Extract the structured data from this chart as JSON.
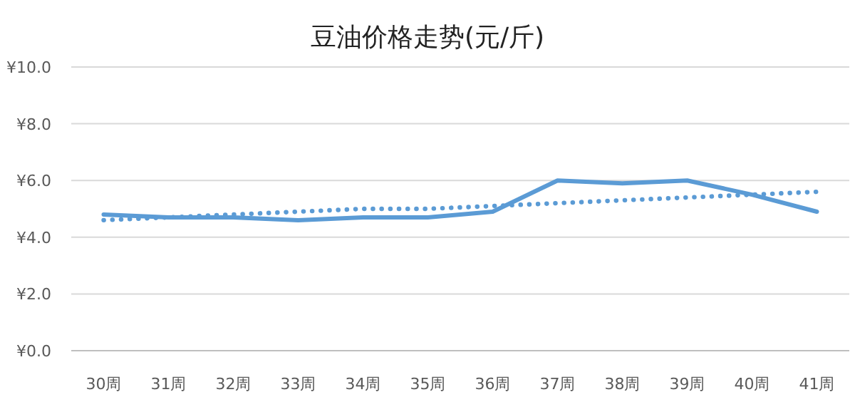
{
  "chart_data": {
    "type": "line",
    "title": "豆油价格走势(元/斤)",
    "categories": [
      "30周",
      "31周",
      "32周",
      "33周",
      "34周",
      "35周",
      "36周",
      "37周",
      "38周",
      "39周",
      "40周",
      "41周"
    ],
    "series": [
      {
        "color": "#5b9bd5",
        "line_style": "solid",
        "values": [
          4.8,
          4.7,
          4.7,
          4.6,
          4.7,
          4.7,
          4.9,
          6.0,
          5.9,
          6.0,
          5.5,
          4.9
        ]
      },
      {
        "color": "#5b9bd5",
        "line_style": "dotted",
        "values": [
          4.6,
          4.7,
          4.8,
          4.9,
          5.0,
          5.0,
          5.1,
          5.2,
          5.3,
          5.4,
          5.5,
          5.6
        ]
      }
    ],
    "ylim": [
      0,
      10
    ],
    "yticks": [
      {
        "value": 0,
        "label": "¥0.0"
      },
      {
        "value": 2,
        "label": "¥2.0"
      },
      {
        "value": 4,
        "label": "¥4.0"
      },
      {
        "value": 6,
        "label": "¥6.0"
      },
      {
        "value": 8,
        "label": "¥8.0"
      },
      {
        "value": 10,
        "label": "¥10.0"
      }
    ],
    "grid": "y",
    "marker": "none"
  }
}
